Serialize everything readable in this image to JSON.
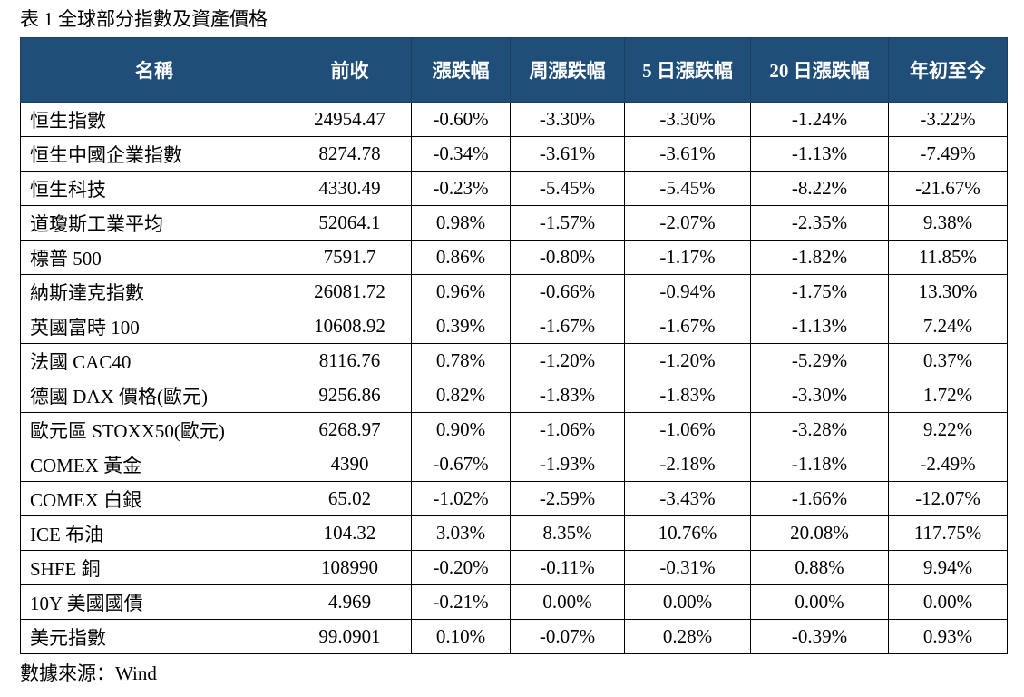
{
  "caption": "表 1 全球部分指數及資產價格",
  "table": {
    "headers": [
      "名稱",
      "前收",
      "漲跌幅",
      "周漲跌幅",
      "5 日漲跌幅",
      "20 日漲跌幅",
      "年初至今"
    ],
    "rows": [
      [
        "恒生指數",
        "24954.47",
        "-0.60%",
        "-3.30%",
        "-3.30%",
        "-1.24%",
        "-3.22%"
      ],
      [
        "恒生中國企業指數",
        "8274.78",
        "-0.34%",
        "-3.61%",
        "-3.61%",
        "-1.13%",
        "-7.49%"
      ],
      [
        "恒生科技",
        "4330.49",
        "-0.23%",
        "-5.45%",
        "-5.45%",
        "-8.22%",
        "-21.67%"
      ],
      [
        "道瓊斯工業平均",
        "52064.1",
        "0.98%",
        "-1.57%",
        "-2.07%",
        "-2.35%",
        "9.38%"
      ],
      [
        "標普 500",
        "7591.7",
        "0.86%",
        "-0.80%",
        "-1.17%",
        "-1.82%",
        "11.85%"
      ],
      [
        "納斯達克指數",
        "26081.72",
        "0.96%",
        "-0.66%",
        "-0.94%",
        "-1.75%",
        "13.30%"
      ],
      [
        "英國富時 100",
        "10608.92",
        "0.39%",
        "-1.67%",
        "-1.67%",
        "-1.13%",
        "7.24%"
      ],
      [
        "法國 CAC40",
        "8116.76",
        "0.78%",
        "-1.20%",
        "-1.20%",
        "-5.29%",
        "0.37%"
      ],
      [
        "德國 DAX 價格(歐元)",
        "9256.86",
        "0.82%",
        "-1.83%",
        "-1.83%",
        "-3.30%",
        "1.72%"
      ],
      [
        "歐元區 STOXX50(歐元)",
        "6268.97",
        "0.90%",
        "-1.06%",
        "-1.06%",
        "-3.28%",
        "9.22%"
      ],
      [
        "COMEX 黃金",
        "4390",
        "-0.67%",
        "-1.93%",
        "-2.18%",
        "-1.18%",
        "-2.49%"
      ],
      [
        "COMEX 白銀",
        "65.02",
        "-1.02%",
        "-2.59%",
        "-3.43%",
        "-1.66%",
        "-12.07%"
      ],
      [
        "ICE 布油",
        "104.32",
        "3.03%",
        "8.35%",
        "10.76%",
        "20.08%",
        "117.75%"
      ],
      [
        "SHFE 銅",
        "108990",
        "-0.20%",
        "-0.11%",
        "-0.31%",
        "0.88%",
        "9.94%"
      ],
      [
        "10Y  美國國債",
        "4.969",
        "-0.21%",
        "0.00%",
        "0.00%",
        "0.00%",
        "0.00%"
      ],
      [
        "美元指數",
        "99.0901",
        "0.10%",
        "-0.07%",
        "0.28%",
        "-0.39%",
        "0.93%"
      ]
    ]
  },
  "footer": "數據來源：Wind",
  "colors": {
    "header_bg": "#1f4e79",
    "header_text": "#ffffff"
  }
}
